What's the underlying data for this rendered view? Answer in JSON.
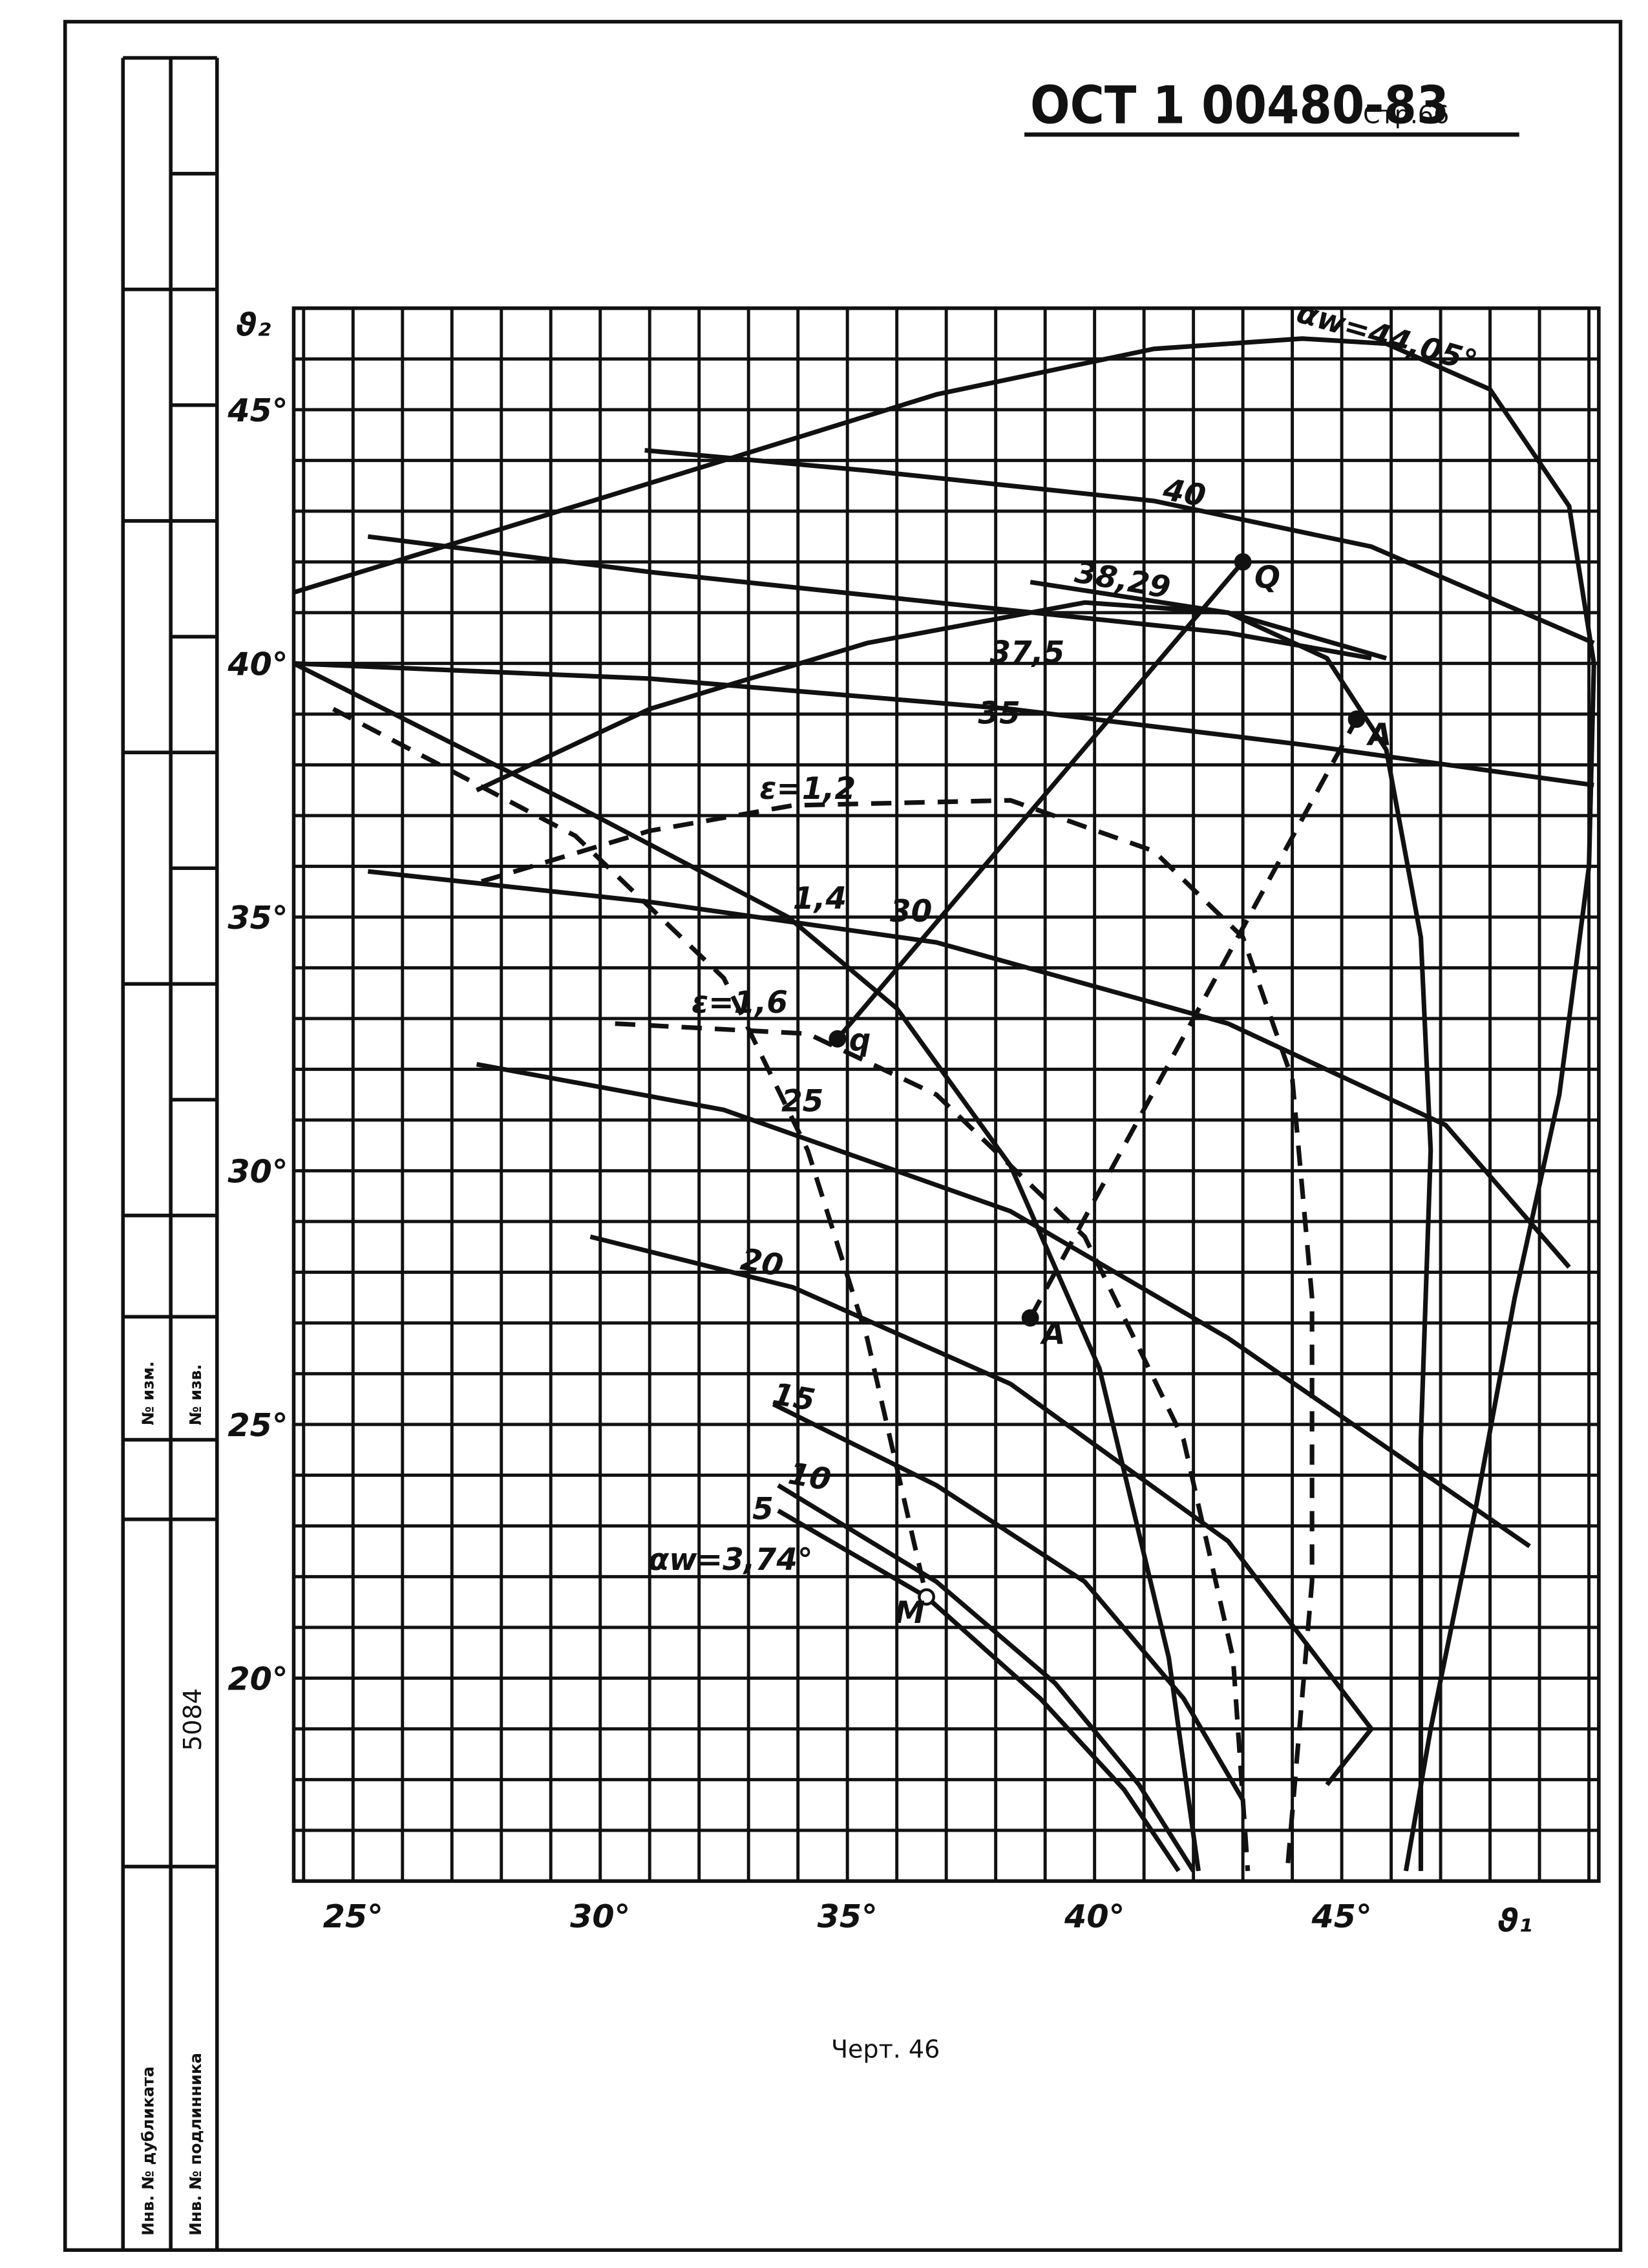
{
  "header": {
    "code": "ОСТ 1 00480-83",
    "page": "Стр.66"
  },
  "stamp": {
    "change_no": "№ изм.",
    "notice_no": "№ изв.",
    "number": "5084",
    "duplicate": "Инв. № дубликата",
    "original": "Инв. № подлинника"
  },
  "caption": "Черт. 46",
  "chart_data": {
    "type": "line",
    "x_label": "ϑ₁",
    "y_label": "ϑ₂",
    "xlim": [
      23.8,
      50.2
    ],
    "ylim": [
      16,
      47
    ],
    "xticks": [
      {
        "value": 25,
        "label": "25°"
      },
      {
        "value": 30,
        "label": "30°"
      },
      {
        "value": 35,
        "label": "35°"
      },
      {
        "value": 40,
        "label": "40°"
      },
      {
        "value": 45,
        "label": "45°"
      }
    ],
    "yticks": [
      {
        "value": 20,
        "label": "20°"
      },
      {
        "value": 25,
        "label": "25°"
      },
      {
        "value": 30,
        "label": "30°"
      },
      {
        "value": 35,
        "label": "35°"
      },
      {
        "value": 40,
        "label": "40°"
      },
      {
        "value": 45,
        "label": "45°"
      }
    ],
    "xgrid": [
      24,
      25,
      26,
      27,
      28,
      29,
      30,
      31,
      32,
      33,
      34,
      35,
      36,
      37,
      38,
      39,
      40,
      41,
      42,
      43,
      44,
      45,
      46,
      47,
      48,
      49,
      50
    ],
    "ygrid": [
      16,
      17,
      18,
      19,
      20,
      21,
      22,
      23,
      24,
      25,
      26,
      27,
      28,
      29,
      30,
      31,
      32,
      33,
      34,
      35,
      36,
      37,
      38,
      39,
      40,
      41,
      42,
      43,
      44,
      45,
      46,
      47
    ],
    "grid": true,
    "color": "#111111",
    "series": [
      {
        "name": "αw=44,05°",
        "dashed": false,
        "x": [
          23.8,
          27.5,
          32.5,
          36.8,
          41.2,
          44.2,
          45.9,
          48.0,
          49.6,
          50.1,
          50.0,
          49.4,
          48.5,
          47.7,
          46.8,
          46.3
        ],
        "y": [
          41.4,
          42.5,
          44.0,
          45.3,
          46.2,
          46.4,
          46.3,
          45.4,
          43.1,
          40.0,
          36.0,
          31.5,
          27.5,
          23.3,
          19.0,
          16.2
        ]
      },
      {
        "name": "40",
        "dashed": false,
        "x": [
          30.9,
          35.4,
          41.2,
          45.6,
          50.1
        ],
        "y": [
          44.2,
          43.8,
          43.2,
          42.3,
          40.4
        ]
      },
      {
        "name": "38,29",
        "dashed": false,
        "x": [
          38.7,
          42.7,
          45.9
        ],
        "y": [
          41.6,
          41.0,
          40.1
        ]
      },
      {
        "name": "37,5",
        "dashed": false,
        "x": [
          25.3,
          31.0,
          36.8,
          42.7,
          45.6
        ],
        "y": [
          42.5,
          41.8,
          41.2,
          40.6,
          40.1
        ]
      },
      {
        "name": "35",
        "dashed": false,
        "x": [
          23.8,
          31.0,
          38.3,
          44.2,
          50.1
        ],
        "y": [
          40.0,
          39.7,
          39.1,
          38.4,
          37.6
        ]
      },
      {
        "dashed": false,
        "x": [
          27.5,
          31.0,
          35.4,
          39.8,
          42.7,
          44.7,
          45.9,
          46.6,
          46.8,
          46.6,
          46.6
        ],
        "y": [
          37.5,
          39.1,
          40.4,
          41.2,
          41.0,
          40.1,
          38.3,
          34.6,
          30.4,
          24.7,
          16.2
        ]
      },
      {
        "name": "ε=1,2",
        "dashed": true,
        "x": [
          27.6,
          31.0,
          33.9,
          38.3,
          41.2,
          43.0,
          44.0,
          44.4,
          44.4,
          43.9
        ],
        "y": [
          35.7,
          36.7,
          37.2,
          37.3,
          36.3,
          34.6,
          31.8,
          27.5,
          21.9,
          16.2
        ]
      },
      {
        "name": "1,4",
        "dashed": false,
        "x": [
          23.8,
          29.5,
          33.8,
          36.0,
          38.3,
          40.1,
          41.5,
          42.1
        ],
        "y": [
          40.0,
          37.2,
          35.0,
          33.2,
          30.1,
          26.1,
          20.4,
          16.2
        ]
      },
      {
        "name": "30",
        "dashed": false,
        "x": [
          25.3,
          31.0,
          36.8,
          42.7,
          47.1,
          49.6
        ],
        "y": [
          35.9,
          35.3,
          34.5,
          32.9,
          30.9,
          28.1
        ]
      },
      {
        "name": "ε=1,6",
        "dashed": true,
        "x": [
          30.3,
          34.2,
          36.8,
          39.8,
          41.8,
          42.8,
          43.1
        ],
        "y": [
          32.9,
          32.7,
          31.5,
          28.7,
          24.7,
          20.4,
          16.2
        ]
      },
      {
        "name": "25",
        "dashed": false,
        "x": [
          27.5,
          32.5,
          38.3,
          42.7,
          48.8
        ],
        "y": [
          32.1,
          31.2,
          29.2,
          26.7,
          22.6
        ]
      },
      {
        "name": "20",
        "dashed": false,
        "x": [
          29.8,
          33.9,
          38.3,
          42.7,
          45.6,
          44.7
        ],
        "y": [
          28.7,
          27.7,
          25.8,
          22.7,
          19.0,
          17.9
        ]
      },
      {
        "name": "15",
        "dashed": false,
        "x": [
          33.5,
          36.8,
          39.8,
          41.8,
          43.0
        ],
        "y": [
          25.4,
          23.8,
          21.9,
          19.6,
          17.6
        ]
      },
      {
        "name": "10",
        "dashed": false,
        "x": [
          33.6,
          36.8,
          39.2,
          40.9,
          42.0
        ],
        "y": [
          23.8,
          21.9,
          19.9,
          17.9,
          16.2
        ]
      },
      {
        "name": "5",
        "dashed": false,
        "x": [
          33.6,
          36.6,
          38.9,
          40.6,
          41.7
        ],
        "y": [
          23.3,
          21.6,
          19.6,
          17.8,
          16.2
        ]
      },
      {
        "name": "αw=3,74°",
        "dashed": true,
        "x": [
          24.6,
          29.5,
          32.5,
          34.2,
          35.4,
          36.6
        ],
        "y": [
          39.1,
          36.6,
          33.8,
          30.4,
          26.7,
          21.6
        ]
      },
      {
        "dashed": false,
        "x": [
          34.8,
          43.0
        ],
        "y": [
          32.6,
          42.0
        ]
      },
      {
        "dashed": true,
        "x": [
          38.7,
          45.3
        ],
        "y": [
          27.1,
          38.9
        ]
      }
    ],
    "points": [
      {
        "label": "Q",
        "x": 43.0,
        "y": 42.0
      },
      {
        "label": "q",
        "x": 34.8,
        "y": 32.6
      },
      {
        "label": "A",
        "x": 45.3,
        "y": 38.9
      },
      {
        "label": "A",
        "x": 38.7,
        "y": 27.1
      },
      {
        "label": "M",
        "x": 36.6,
        "y": 21.6
      }
    ]
  }
}
